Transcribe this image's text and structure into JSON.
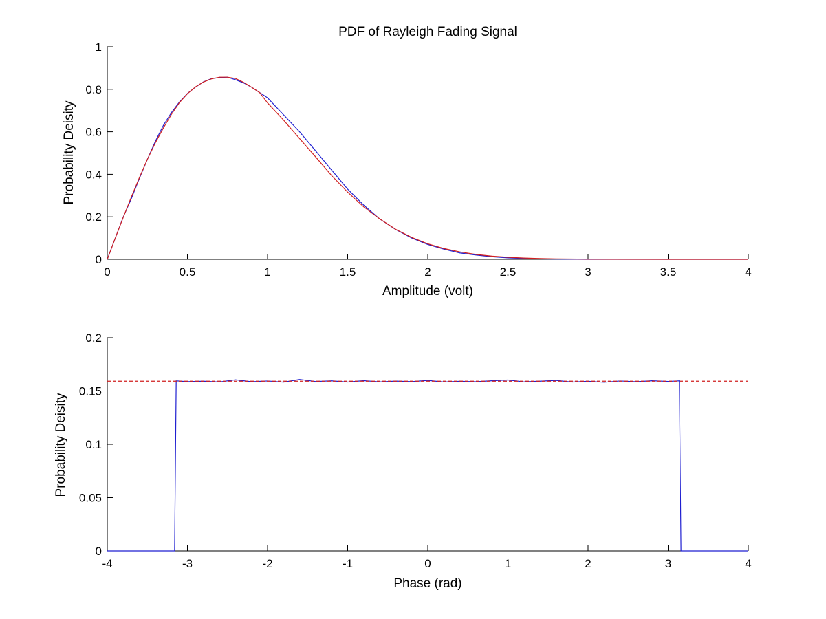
{
  "figure": {
    "background": "#ffffff"
  },
  "chart_data": [
    {
      "type": "line",
      "title": "PDF of Rayleigh Fading Signal",
      "xlabel": "Amplitude (volt)",
      "ylabel": "Probability Deisity",
      "xlim": [
        0,
        4
      ],
      "ylim": [
        0,
        1
      ],
      "xticks": [
        0,
        0.5,
        1,
        1.5,
        2,
        2.5,
        3,
        3.5,
        4
      ],
      "xtick_labels": [
        "0",
        "0.5",
        "1",
        "1.5",
        "2",
        "2.5",
        "3",
        "3.5",
        "4"
      ],
      "yticks": [
        0,
        0.2,
        0.4,
        0.6,
        0.8,
        1
      ],
      "ytick_labels": [
        "0",
        "0.2",
        "0.4",
        "0.6",
        "0.8",
        "1"
      ],
      "grid": false,
      "series": [
        {
          "color": "#1f1fd0",
          "style": "solid",
          "x": [
            0,
            0.05,
            0.1,
            0.15,
            0.2,
            0.25,
            0.3,
            0.35,
            0.4,
            0.45,
            0.5,
            0.55,
            0.6,
            0.65,
            0.7,
            0.75,
            0.8,
            0.85,
            0.9,
            0.95,
            1.0,
            1.1,
            1.2,
            1.3,
            1.4,
            1.5,
            1.6,
            1.7,
            1.8,
            1.9,
            2.0,
            2.1,
            2.2,
            2.3,
            2.4,
            2.5,
            2.6,
            2.7,
            2.8,
            3.0,
            3.5,
            4.0
          ],
          "y": [
            0,
            0.1,
            0.2,
            0.285,
            0.38,
            0.47,
            0.555,
            0.63,
            0.69,
            0.74,
            0.78,
            0.81,
            0.835,
            0.85,
            0.855,
            0.857,
            0.845,
            0.83,
            0.81,
            0.785,
            0.76,
            0.68,
            0.6,
            0.51,
            0.42,
            0.33,
            0.255,
            0.19,
            0.14,
            0.1,
            0.07,
            0.048,
            0.03,
            0.02,
            0.012,
            0.007,
            0.004,
            0.002,
            0.001,
            0.0,
            0.0,
            0.0
          ]
        },
        {
          "color": "#d01f1f",
          "style": "solid",
          "x": [
            0,
            0.05,
            0.1,
            0.15,
            0.2,
            0.25,
            0.3,
            0.35,
            0.4,
            0.45,
            0.5,
            0.55,
            0.6,
            0.65,
            0.7,
            0.75,
            0.8,
            0.85,
            0.9,
            0.95,
            1.0,
            1.1,
            1.2,
            1.3,
            1.4,
            1.5,
            1.6,
            1.7,
            1.8,
            1.9,
            2.0,
            2.1,
            2.2,
            2.3,
            2.4,
            2.5,
            2.6,
            2.7,
            2.8,
            3.0,
            3.5,
            4.0
          ],
          "y": [
            0,
            0.1,
            0.198,
            0.293,
            0.384,
            0.47,
            0.548,
            0.618,
            0.682,
            0.737,
            0.779,
            0.811,
            0.834,
            0.849,
            0.857,
            0.857,
            0.851,
            0.833,
            0.81,
            0.785,
            0.736,
            0.655,
            0.568,
            0.482,
            0.394,
            0.316,
            0.247,
            0.19,
            0.141,
            0.103,
            0.073,
            0.051,
            0.035,
            0.023,
            0.015,
            0.0096,
            0.0061,
            0.0037,
            0.0022,
            0.0007,
            0.0,
            0.0
          ]
        }
      ]
    },
    {
      "type": "line",
      "title": "",
      "xlabel": "Phase (rad)",
      "ylabel": "Probability Deisity",
      "xlim": [
        -4,
        4
      ],
      "ylim": [
        0,
        0.2
      ],
      "xticks": [
        -4,
        -3,
        -2,
        -1,
        0,
        1,
        2,
        3,
        4
      ],
      "xtick_labels": [
        "-4",
        "-3",
        "-2",
        "-1",
        "0",
        "1",
        "2",
        "3",
        "4"
      ],
      "yticks": [
        0,
        0.05,
        0.1,
        0.15,
        0.2
      ],
      "ytick_labels": [
        "0",
        "0.05",
        "0.1",
        "0.15",
        "0.2"
      ],
      "grid": false,
      "series": [
        {
          "color": "#1f1fd0",
          "style": "solid",
          "x": [
            -4,
            -3.16,
            -3.14,
            -3.0,
            -2.8,
            -2.6,
            -2.4,
            -2.2,
            -2.0,
            -1.8,
            -1.6,
            -1.4,
            -1.2,
            -1.0,
            -0.8,
            -0.6,
            -0.4,
            -0.2,
            0.0,
            0.2,
            0.4,
            0.6,
            0.8,
            1.0,
            1.2,
            1.4,
            1.6,
            1.8,
            2.0,
            2.2,
            2.4,
            2.6,
            2.8,
            3.0,
            3.14,
            3.16,
            4
          ],
          "y": [
            0,
            0,
            0.1595,
            0.1588,
            0.1592,
            0.1585,
            0.1605,
            0.1587,
            0.1594,
            0.1583,
            0.1608,
            0.1589,
            0.1595,
            0.1584,
            0.1597,
            0.1586,
            0.1593,
            0.1588,
            0.1599,
            0.1585,
            0.1591,
            0.1587,
            0.1596,
            0.1603,
            0.1586,
            0.1592,
            0.1599,
            0.1584,
            0.1591,
            0.1582,
            0.1594,
            0.1587,
            0.1596,
            0.159,
            0.1595,
            0,
            0
          ]
        },
        {
          "color": "#d01f1f",
          "style": "dashed",
          "x": [
            -4,
            4
          ],
          "y": [
            0.1592,
            0.1592
          ]
        }
      ]
    }
  ]
}
